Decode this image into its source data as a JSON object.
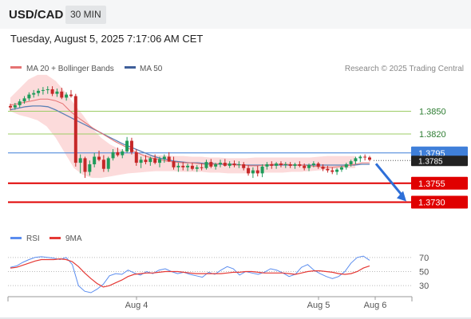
{
  "header": {
    "symbol": "USD/CAD",
    "timeframe": "30 MIN"
  },
  "datetime": "Tuesday, August 5, 2025 7:17:06 AM CET",
  "legend": {
    "ma20_bb": "MA 20 + Bollinger Bands",
    "ma50": "MA 50",
    "credit": "Research © 2025 Trading Central"
  },
  "rsi_legend": {
    "rsi": "RSI",
    "ma9": "9MA"
  },
  "colors": {
    "bull": "#1f9b5a",
    "bear": "#c62828",
    "ma20": "#e57373",
    "ma50": "#5b7fb5",
    "bband": "#fbd5d5",
    "resistance": "#9ccc65",
    "pivot": "#3f7fd9",
    "support": "#e00000",
    "rsi": "#5b8def",
    "ma9": "#e53935",
    "arrow": "#2e6fd8"
  },
  "chart_data": {
    "type": "candlestick",
    "x_axis": {
      "labels": [
        "Aug 4",
        "Aug 5",
        "Aug 6"
      ]
    },
    "price_range": [
      1.37,
      1.39
    ],
    "levels": [
      {
        "value": "1.3850",
        "kind": "resistance"
      },
      {
        "value": "1.3820",
        "kind": "resistance"
      },
      {
        "value": "1.3795",
        "kind": "pivot"
      },
      {
        "value": "1.3785",
        "kind": "current"
      },
      {
        "value": "1.3755",
        "kind": "support"
      },
      {
        "value": "1.3730",
        "kind": "support"
      }
    ],
    "candles": [
      [
        1.3857,
        1.386,
        1.3851,
        1.3855
      ],
      [
        1.3855,
        1.3861,
        1.3852,
        1.3858
      ],
      [
        1.3858,
        1.3866,
        1.3855,
        1.3863
      ],
      [
        1.3863,
        1.387,
        1.386,
        1.3867
      ],
      [
        1.3867,
        1.3875,
        1.3864,
        1.3872
      ],
      [
        1.3872,
        1.3878,
        1.3868,
        1.3874
      ],
      [
        1.3874,
        1.388,
        1.387,
        1.3877
      ],
      [
        1.3877,
        1.3882,
        1.3872,
        1.3878
      ],
      [
        1.3878,
        1.3883,
        1.3873,
        1.3879
      ],
      [
        1.3879,
        1.3883,
        1.387,
        1.3873
      ],
      [
        1.3873,
        1.388,
        1.3869,
        1.3876
      ],
      [
        1.3876,
        1.3881,
        1.3866,
        1.3868
      ],
      [
        1.3868,
        1.3875,
        1.3864,
        1.3872
      ],
      [
        1.3872,
        1.3878,
        1.3868,
        1.387
      ],
      [
        1.387,
        1.3873,
        1.3777,
        1.3782
      ],
      [
        1.3782,
        1.3793,
        1.3768,
        1.3788
      ],
      [
        1.3788,
        1.379,
        1.3762,
        1.377
      ],
      [
        1.377,
        1.3785,
        1.3765,
        1.378
      ],
      [
        1.378,
        1.3795,
        1.3776,
        1.379
      ],
      [
        1.379,
        1.3798,
        1.3784,
        1.3786
      ],
      [
        1.3786,
        1.3792,
        1.377,
        1.3774
      ],
      [
        1.3774,
        1.379,
        1.377,
        1.3788
      ],
      [
        1.3788,
        1.38,
        1.3785,
        1.3796
      ],
      [
        1.3796,
        1.3802,
        1.379,
        1.3792
      ],
      [
        1.3792,
        1.38,
        1.3788,
        1.3797
      ],
      [
        1.3797,
        1.3816,
        1.3795,
        1.3811
      ],
      [
        1.3811,
        1.3815,
        1.3793,
        1.3796
      ],
      [
        1.3796,
        1.38,
        1.3778,
        1.3782
      ],
      [
        1.3782,
        1.379,
        1.3775,
        1.3786
      ],
      [
        1.3786,
        1.3792,
        1.378,
        1.3783
      ],
      [
        1.3783,
        1.379,
        1.3778,
        1.3788
      ],
      [
        1.3788,
        1.3793,
        1.378,
        1.3782
      ],
      [
        1.3782,
        1.379,
        1.3776,
        1.3787
      ],
      [
        1.3787,
        1.3793,
        1.3782,
        1.379
      ],
      [
        1.379,
        1.3796,
        1.3783,
        1.3784
      ],
      [
        1.3784,
        1.379,
        1.3773,
        1.3776
      ],
      [
        1.3776,
        1.3782,
        1.377,
        1.3778
      ],
      [
        1.3778,
        1.3783,
        1.3772,
        1.3776
      ],
      [
        1.3776,
        1.3781,
        1.3771,
        1.3778
      ],
      [
        1.3778,
        1.3782,
        1.3772,
        1.3774
      ],
      [
        1.3774,
        1.3779,
        1.377,
        1.3776
      ],
      [
        1.3776,
        1.3781,
        1.3772,
        1.3775
      ],
      [
        1.3775,
        1.3786,
        1.3773,
        1.3783
      ],
      [
        1.3783,
        1.3787,
        1.3775,
        1.3777
      ],
      [
        1.3777,
        1.3782,
        1.3773,
        1.378
      ],
      [
        1.378,
        1.3786,
        1.3776,
        1.3782
      ],
      [
        1.3782,
        1.3787,
        1.3777,
        1.3778
      ],
      [
        1.3778,
        1.3784,
        1.3775,
        1.3781
      ],
      [
        1.3781,
        1.3785,
        1.3776,
        1.3779
      ],
      [
        1.3779,
        1.3784,
        1.3775,
        1.378
      ],
      [
        1.378,
        1.3783,
        1.3772,
        1.3775
      ],
      [
        1.3775,
        1.3779,
        1.3765,
        1.3768
      ],
      [
        1.3768,
        1.3776,
        1.3762,
        1.3772
      ],
      [
        1.3772,
        1.3778,
        1.3764,
        1.3768
      ],
      [
        1.3768,
        1.378,
        1.3763,
        1.3777
      ],
      [
        1.3777,
        1.3783,
        1.3773,
        1.378
      ],
      [
        1.378,
        1.3784,
        1.3774,
        1.3778
      ],
      [
        1.3778,
        1.3783,
        1.3774,
        1.3781
      ],
      [
        1.3781,
        1.3784,
        1.3776,
        1.3779
      ],
      [
        1.3779,
        1.3783,
        1.3775,
        1.378
      ],
      [
        1.378,
        1.3783,
        1.3775,
        1.3778
      ],
      [
        1.3778,
        1.3782,
        1.3774,
        1.378
      ],
      [
        1.378,
        1.3784,
        1.3776,
        1.3778
      ],
      [
        1.3778,
        1.3781,
        1.3772,
        1.3775
      ],
      [
        1.3775,
        1.3781,
        1.3771,
        1.3779
      ],
      [
        1.3779,
        1.3784,
        1.3776,
        1.3781
      ],
      [
        1.3781,
        1.3783,
        1.3774,
        1.3777
      ],
      [
        1.3777,
        1.378,
        1.3771,
        1.3774
      ],
      [
        1.3774,
        1.3778,
        1.3769,
        1.3772
      ],
      [
        1.3772,
        1.3776,
        1.3767,
        1.377
      ],
      [
        1.377,
        1.3775,
        1.3766,
        1.3773
      ],
      [
        1.3773,
        1.3778,
        1.377,
        1.3776
      ],
      [
        1.3776,
        1.3782,
        1.3773,
        1.378
      ],
      [
        1.378,
        1.3786,
        1.3777,
        1.3784
      ],
      [
        1.3784,
        1.379,
        1.378,
        1.3788
      ],
      [
        1.3788,
        1.3792,
        1.3783,
        1.379
      ],
      [
        1.379,
        1.3793,
        1.3785,
        1.3789
      ],
      [
        1.3789,
        1.3791,
        1.3784,
        1.3786
      ]
    ],
    "ma20": [
      1.3858,
      1.386,
      1.3862,
      1.3864,
      1.3866,
      1.3866,
      1.3864,
      1.386,
      1.385,
      1.3842,
      1.3835,
      1.3828,
      1.3822,
      1.3816,
      1.381,
      1.3805,
      1.38,
      1.3795,
      1.3791,
      1.3788,
      1.3786,
      1.3784,
      1.3783,
      1.3782,
      1.3782,
      1.3781,
      1.378,
      1.378,
      1.3781,
      1.378,
      1.3779,
      1.3779,
      1.3778,
      1.3778,
      1.3779,
      1.378,
      1.378,
      1.378,
      1.3779,
      1.3779,
      1.3778,
      1.3777,
      1.3776,
      1.3776,
      1.3777,
      1.3778,
      1.378,
      1.3782,
      1.3782
    ],
    "ma50": [
      1.3852,
      1.3854,
      1.3856,
      1.3857,
      1.3857,
      1.3856,
      1.3852,
      1.3847,
      1.3842,
      1.3837,
      1.3832,
      1.3827,
      1.3822,
      1.3817,
      1.3812,
      1.3807,
      1.3803,
      1.3799,
      1.3795,
      1.3791,
      1.3788,
      1.3786,
      1.3784,
      1.3783,
      1.3782,
      1.3782,
      1.3781,
      1.3781,
      1.378,
      1.378,
      1.378,
      1.3779,
      1.3779,
      1.3779,
      1.3779,
      1.3779,
      1.3779,
      1.3779,
      1.3779,
      1.3779,
      1.3779,
      1.3779,
      1.3779,
      1.3779,
      1.3779,
      1.3779,
      1.3779,
      1.378,
      1.378
    ],
    "bollinger": {
      "upper": [
        1.3868,
        1.388,
        1.3892,
        1.3898,
        1.3898,
        1.389,
        1.3876,
        1.386,
        1.3845,
        1.3828,
        1.3815,
        1.3806,
        1.38,
        1.3797,
        1.3794,
        1.3793,
        1.3792,
        1.3792,
        1.3791,
        1.3791,
        1.379,
        1.379,
        1.3789,
        1.3789,
        1.3788,
        1.3788,
        1.3788,
        1.3789,
        1.3789,
        1.3789,
        1.3789,
        1.3789,
        1.3789,
        1.3789,
        1.379,
        1.3791,
        1.3791,
        1.3791,
        1.3791
      ],
      "lower": [
        1.385,
        1.3845,
        1.3842,
        1.3838,
        1.383,
        1.3815,
        1.3795,
        1.3775,
        1.3766,
        1.3762,
        1.3762,
        1.3764,
        1.3766,
        1.3768,
        1.3769,
        1.377,
        1.3771,
        1.3771,
        1.3771,
        1.377,
        1.377,
        1.377,
        1.3769,
        1.3769,
        1.3768,
        1.3768,
        1.3768,
        1.3769,
        1.3769,
        1.3769,
        1.3769,
        1.377,
        1.377,
        1.3771,
        1.3772,
        1.3773,
        1.3774,
        1.3775,
        1.3775
      ]
    },
    "rsi": {
      "levels": [
        "70",
        "50",
        "30"
      ],
      "range": [
        20,
        80
      ],
      "rsi": [
        56,
        58,
        63,
        67,
        70,
        71,
        70,
        69,
        67,
        70,
        60,
        30,
        22,
        20,
        25,
        32,
        44,
        47,
        46,
        52,
        48,
        45,
        50,
        47,
        52,
        54,
        50,
        47,
        49,
        46,
        44,
        42,
        49,
        46,
        52,
        57,
        54,
        45,
        50,
        48,
        46,
        49,
        54,
        52,
        48,
        43,
        46,
        56,
        60,
        52,
        47,
        43,
        40,
        43,
        50,
        62,
        70,
        72,
        66
      ],
      "ma9": [
        55,
        56,
        59,
        62,
        65,
        67,
        67,
        67,
        68,
        67,
        64,
        57,
        48,
        40,
        33,
        28,
        30,
        34,
        38,
        43,
        46,
        47,
        48,
        48,
        49,
        50,
        50,
        50,
        49,
        48,
        47,
        47,
        47,
        47,
        47,
        48,
        49,
        49,
        50,
        50,
        49,
        48,
        48,
        48,
        48,
        47,
        46,
        48,
        50,
        51,
        51,
        50,
        49,
        47,
        46,
        47,
        50,
        55,
        58
      ]
    }
  }
}
